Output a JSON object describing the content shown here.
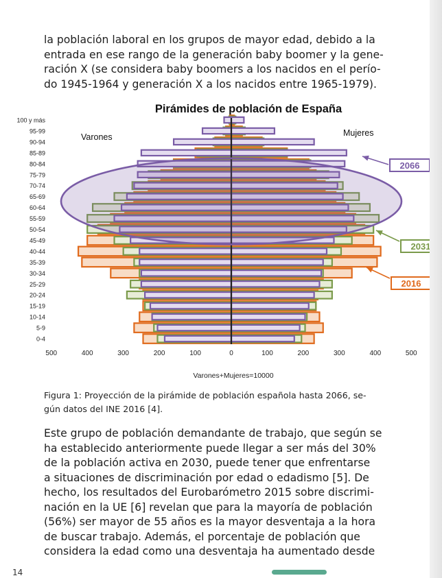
{
  "intro_paragraph": [
    "la población laboral en los grupos de mayor edad, debido a la",
    "entrada en ese rango de la generación baby boomer y la gene-",
    "ración X (se considera baby boomers a los nacidos en el perío-",
    "do 1945-1964 y generación X a los nacidos entre 1965-1979)."
  ],
  "caption": [
    "Figura 1: Proyección de la pirámide de población española hasta 2066, se-",
    "gún datos del INE 2016 [4]."
  ],
  "body_paragraph": [
    "Este grupo de población demandante de trabajo, que según se",
    "ha establecido anteriormente puede llegar a ser más del 30%",
    "de la población activa en 2030, puede tener que enfrentarse",
    "a situaciones de discriminación por edad o edadismo [5]. De",
    "hecho, los resultados del Eurobarómetro 2015 sobre discrimi-",
    "nación en la UE [6] revelan que para la mayoría de población",
    "(56%) ser mayor de 55 años es la mayor desventaja a la hora",
    "de buscar trabajo. Además, el porcentaje de población que",
    "considera la edad como una desventaja ha aumentado desde"
  ],
  "page_number": "14",
  "chart_data": {
    "type": "bar",
    "orientation": "horizontal-pyramid",
    "title": "Pirámides de población de España",
    "xlabel": "Varones+Mujeres=10000",
    "left_label": "Varones",
    "right_label": "Mujeres",
    "categories": [
      "0-4",
      "5-9",
      "10-14",
      "15-19",
      "20-24",
      "25-29",
      "30-34",
      "35-39",
      "40-44",
      "45-49",
      "50-54",
      "55-59",
      "60-64",
      "65-69",
      "70-74",
      "75-79",
      "80-84",
      "85-89",
      "90-94",
      "95-99",
      "100 y más"
    ],
    "xlim": [
      -500,
      500
    ],
    "x_ticks": [
      -500,
      -400,
      -300,
      -200,
      -100,
      0,
      100,
      200,
      300,
      400,
      500
    ],
    "x_tick_labels": [
      "500",
      "400",
      "300",
      "200",
      "100",
      "0",
      "100",
      "200",
      "300",
      "400",
      "500"
    ],
    "series": [
      {
        "name": "2016",
        "color": "#e06a1c",
        "fill": "#f8dcc6",
        "male": [
          245,
          270,
          255,
          245,
          245,
          255,
          335,
          415,
          425,
          400,
          370,
          335,
          295,
          270,
          230,
          195,
          160,
          100,
          45,
          15,
          4
        ],
        "female": [
          230,
          255,
          245,
          235,
          240,
          255,
          335,
          405,
          415,
          395,
          370,
          345,
          315,
          290,
          260,
          235,
          215,
          155,
          85,
          30,
          8
        ]
      },
      {
        "name": "2031",
        "color": "#7a9a4a",
        "fill": "#e7ecd7",
        "male": [
          205,
          215,
          220,
          240,
          290,
          280,
          255,
          270,
          300,
          325,
          400,
          400,
          385,
          325,
          275,
          230,
          160,
          95,
          50,
          22,
          6
        ],
        "female": [
          195,
          205,
          210,
          235,
          280,
          280,
          255,
          280,
          305,
          335,
          395,
          410,
          385,
          355,
          310,
          270,
          220,
          155,
          90,
          38,
          12
        ]
      },
      {
        "name": "2066",
        "color": "#7a5ca6",
        "fill": "#e4dcef",
        "male": [
          185,
          205,
          220,
          225,
          240,
          250,
          250,
          255,
          255,
          280,
          310,
          325,
          305,
          290,
          270,
          260,
          260,
          250,
          160,
          80,
          20
        ],
        "female": [
          175,
          190,
          205,
          215,
          230,
          245,
          250,
          255,
          265,
          285,
          320,
          340,
          325,
          310,
          295,
          300,
          315,
          320,
          230,
          120,
          35
        ]
      }
    ],
    "annotations": [
      {
        "text": "2066",
        "color": "#7a5ca6"
      },
      {
        "text": "2031",
        "color": "#7a9a4a"
      },
      {
        "text": "2016",
        "color": "#e06a1c"
      }
    ],
    "highlight_ellipse": {
      "color": "#7a5ca6",
      "fill": "rgba(122,92,166,0.22)",
      "from_age": "50-54",
      "to_age": "75-79"
    },
    "grid": false
  }
}
